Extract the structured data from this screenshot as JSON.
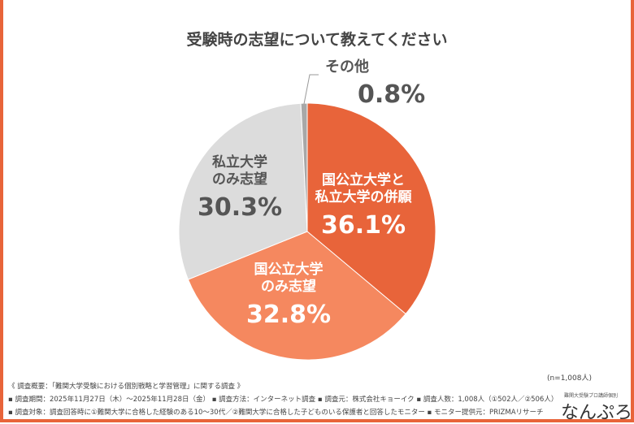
{
  "chart_data": {
    "type": "pie",
    "title": "受験時の志望について教えてください",
    "slices": [
      {
        "label": "国公立大学と私立大学の併願",
        "value": 36.1,
        "display": "36.1%",
        "color": "#e8643a"
      },
      {
        "label": "国公立大学のみ志望",
        "value": 32.8,
        "display": "32.8%",
        "color": "#f5885f"
      },
      {
        "label": "私立大学のみ志望",
        "value": 30.3,
        "display": "30.3%",
        "color": "#dcdcdc"
      },
      {
        "label": "その他",
        "value": 0.8,
        "display": "0.8%",
        "color": "#a8a8a8"
      }
    ],
    "slice_label_lines": [
      [
        "国公立大学と",
        "私立大学の併願"
      ],
      [
        "国公立大学",
        "のみ志望"
      ],
      [
        "私立大学",
        "のみ志望"
      ],
      [
        "その他"
      ]
    ]
  },
  "sample_size": "(n=1,008人)",
  "notes": [
    "《 調査概要：「難関大学受験における個別戦略と学習管理」に関する調査 》",
    "▪ 調査期間：2025年11月27日（木）～2025年11月28日（金） ▪ 調査方法：インターネット調査 ▪ 調査元：株式会社キョーイク ▪ 調査人数：1,008人（①502人／②506人）",
    "▪ 調査対象：調査回答時に①難関大学に合格した経験のある10～30代／②難関大学に合格した子どものいる保護者と回答したモニター ▪ モニター提供元：PRIZMAリサーチ"
  ],
  "logo": {
    "tagline": "難関大受験プロ講師個別",
    "name": "なんぷろ"
  }
}
